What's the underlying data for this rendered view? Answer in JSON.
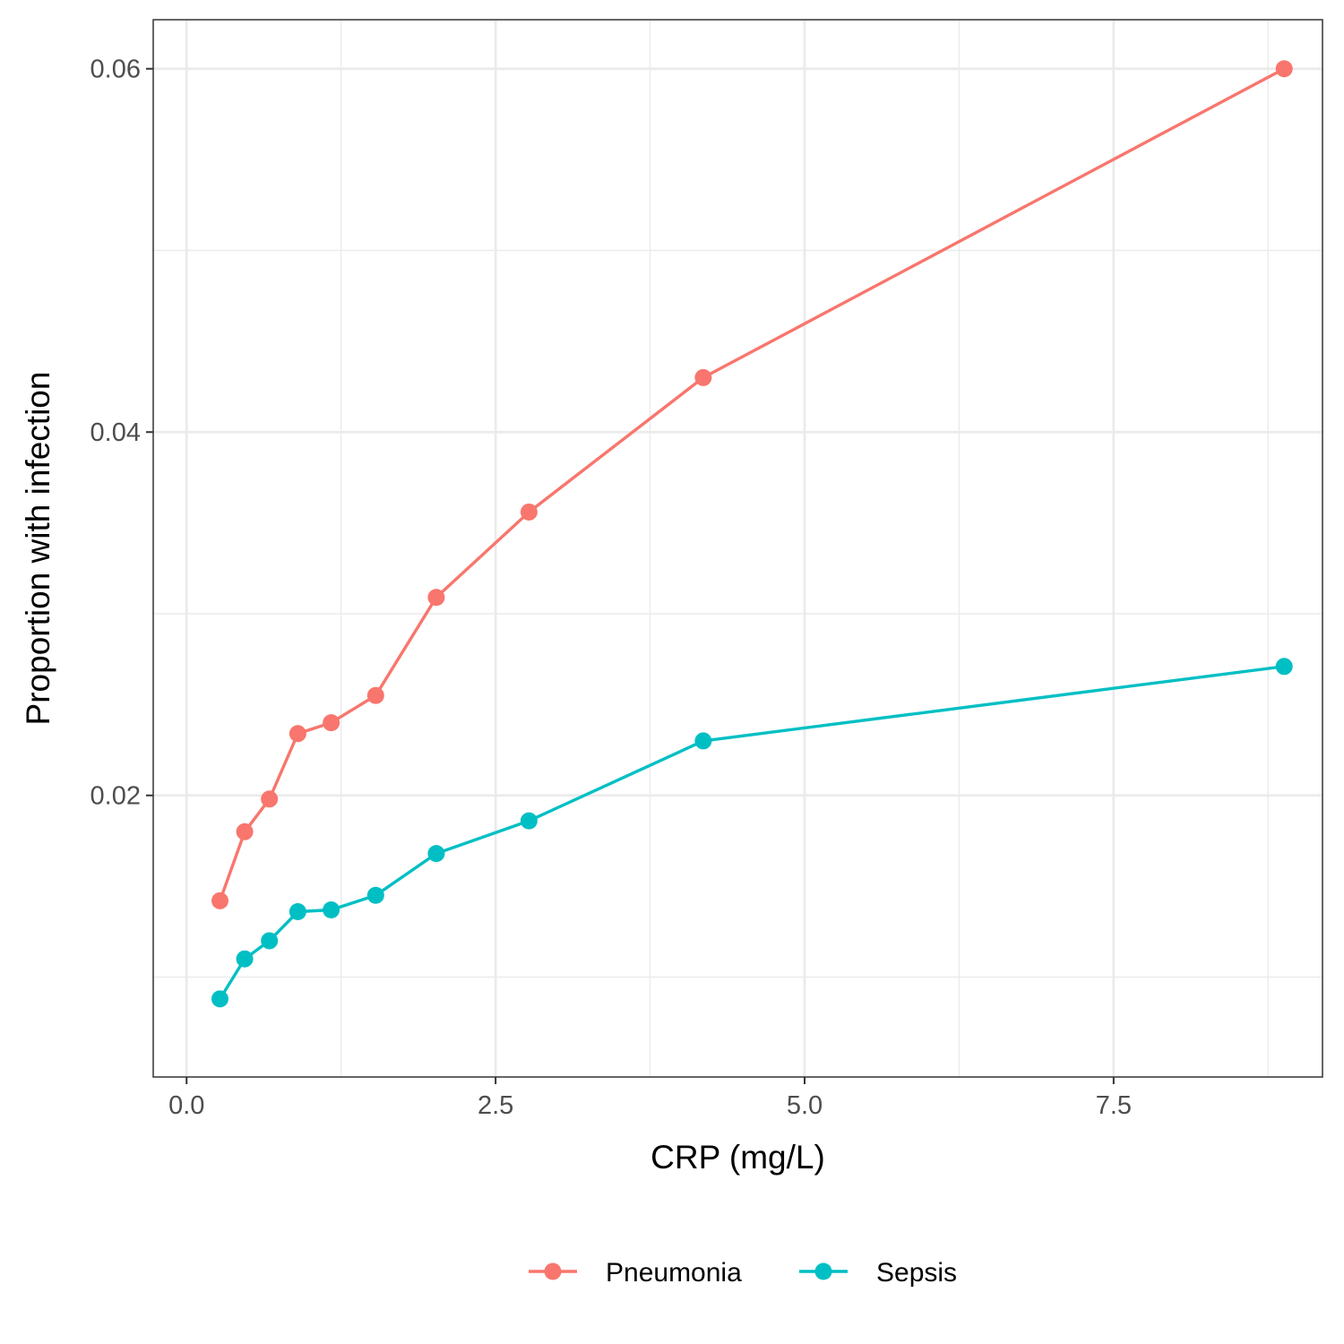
{
  "chart_data": {
    "type": "line",
    "title": "",
    "xlabel": "CRP (mg/L)",
    "ylabel": "Proportion with infection",
    "xlim": [
      -0.27,
      9.19
    ],
    "ylim": [
      0.0045,
      0.0627
    ],
    "x_ticks": [
      0.0,
      2.5,
      5.0,
      7.5
    ],
    "x_tick_labels": [
      "0.0",
      "2.5",
      "5.0",
      "7.5"
    ],
    "x_minor_ticks": [
      1.25,
      3.75,
      6.25,
      8.75
    ],
    "y_ticks": [
      0.02,
      0.04,
      0.06
    ],
    "y_tick_labels": [
      "0.02",
      "0.04",
      "0.06"
    ],
    "y_minor_ticks": [
      0.01,
      0.03,
      0.05
    ],
    "grid": true,
    "legend_position": "bottom",
    "x": [
      0.27,
      0.47,
      0.67,
      0.9,
      1.17,
      1.53,
      2.02,
      2.77,
      4.18,
      8.88
    ],
    "series": [
      {
        "name": "Pneumonia",
        "color": "#F8766D",
        "values": [
          0.0142,
          0.018,
          0.0198,
          0.0234,
          0.024,
          0.0255,
          0.0309,
          0.0356,
          0.043,
          0.06
        ]
      },
      {
        "name": "Sepsis",
        "color": "#00BFC4",
        "values": [
          0.0088,
          0.011,
          0.012,
          0.0136,
          0.0137,
          0.0145,
          0.0168,
          0.0186,
          0.023,
          0.0271
        ]
      }
    ]
  }
}
